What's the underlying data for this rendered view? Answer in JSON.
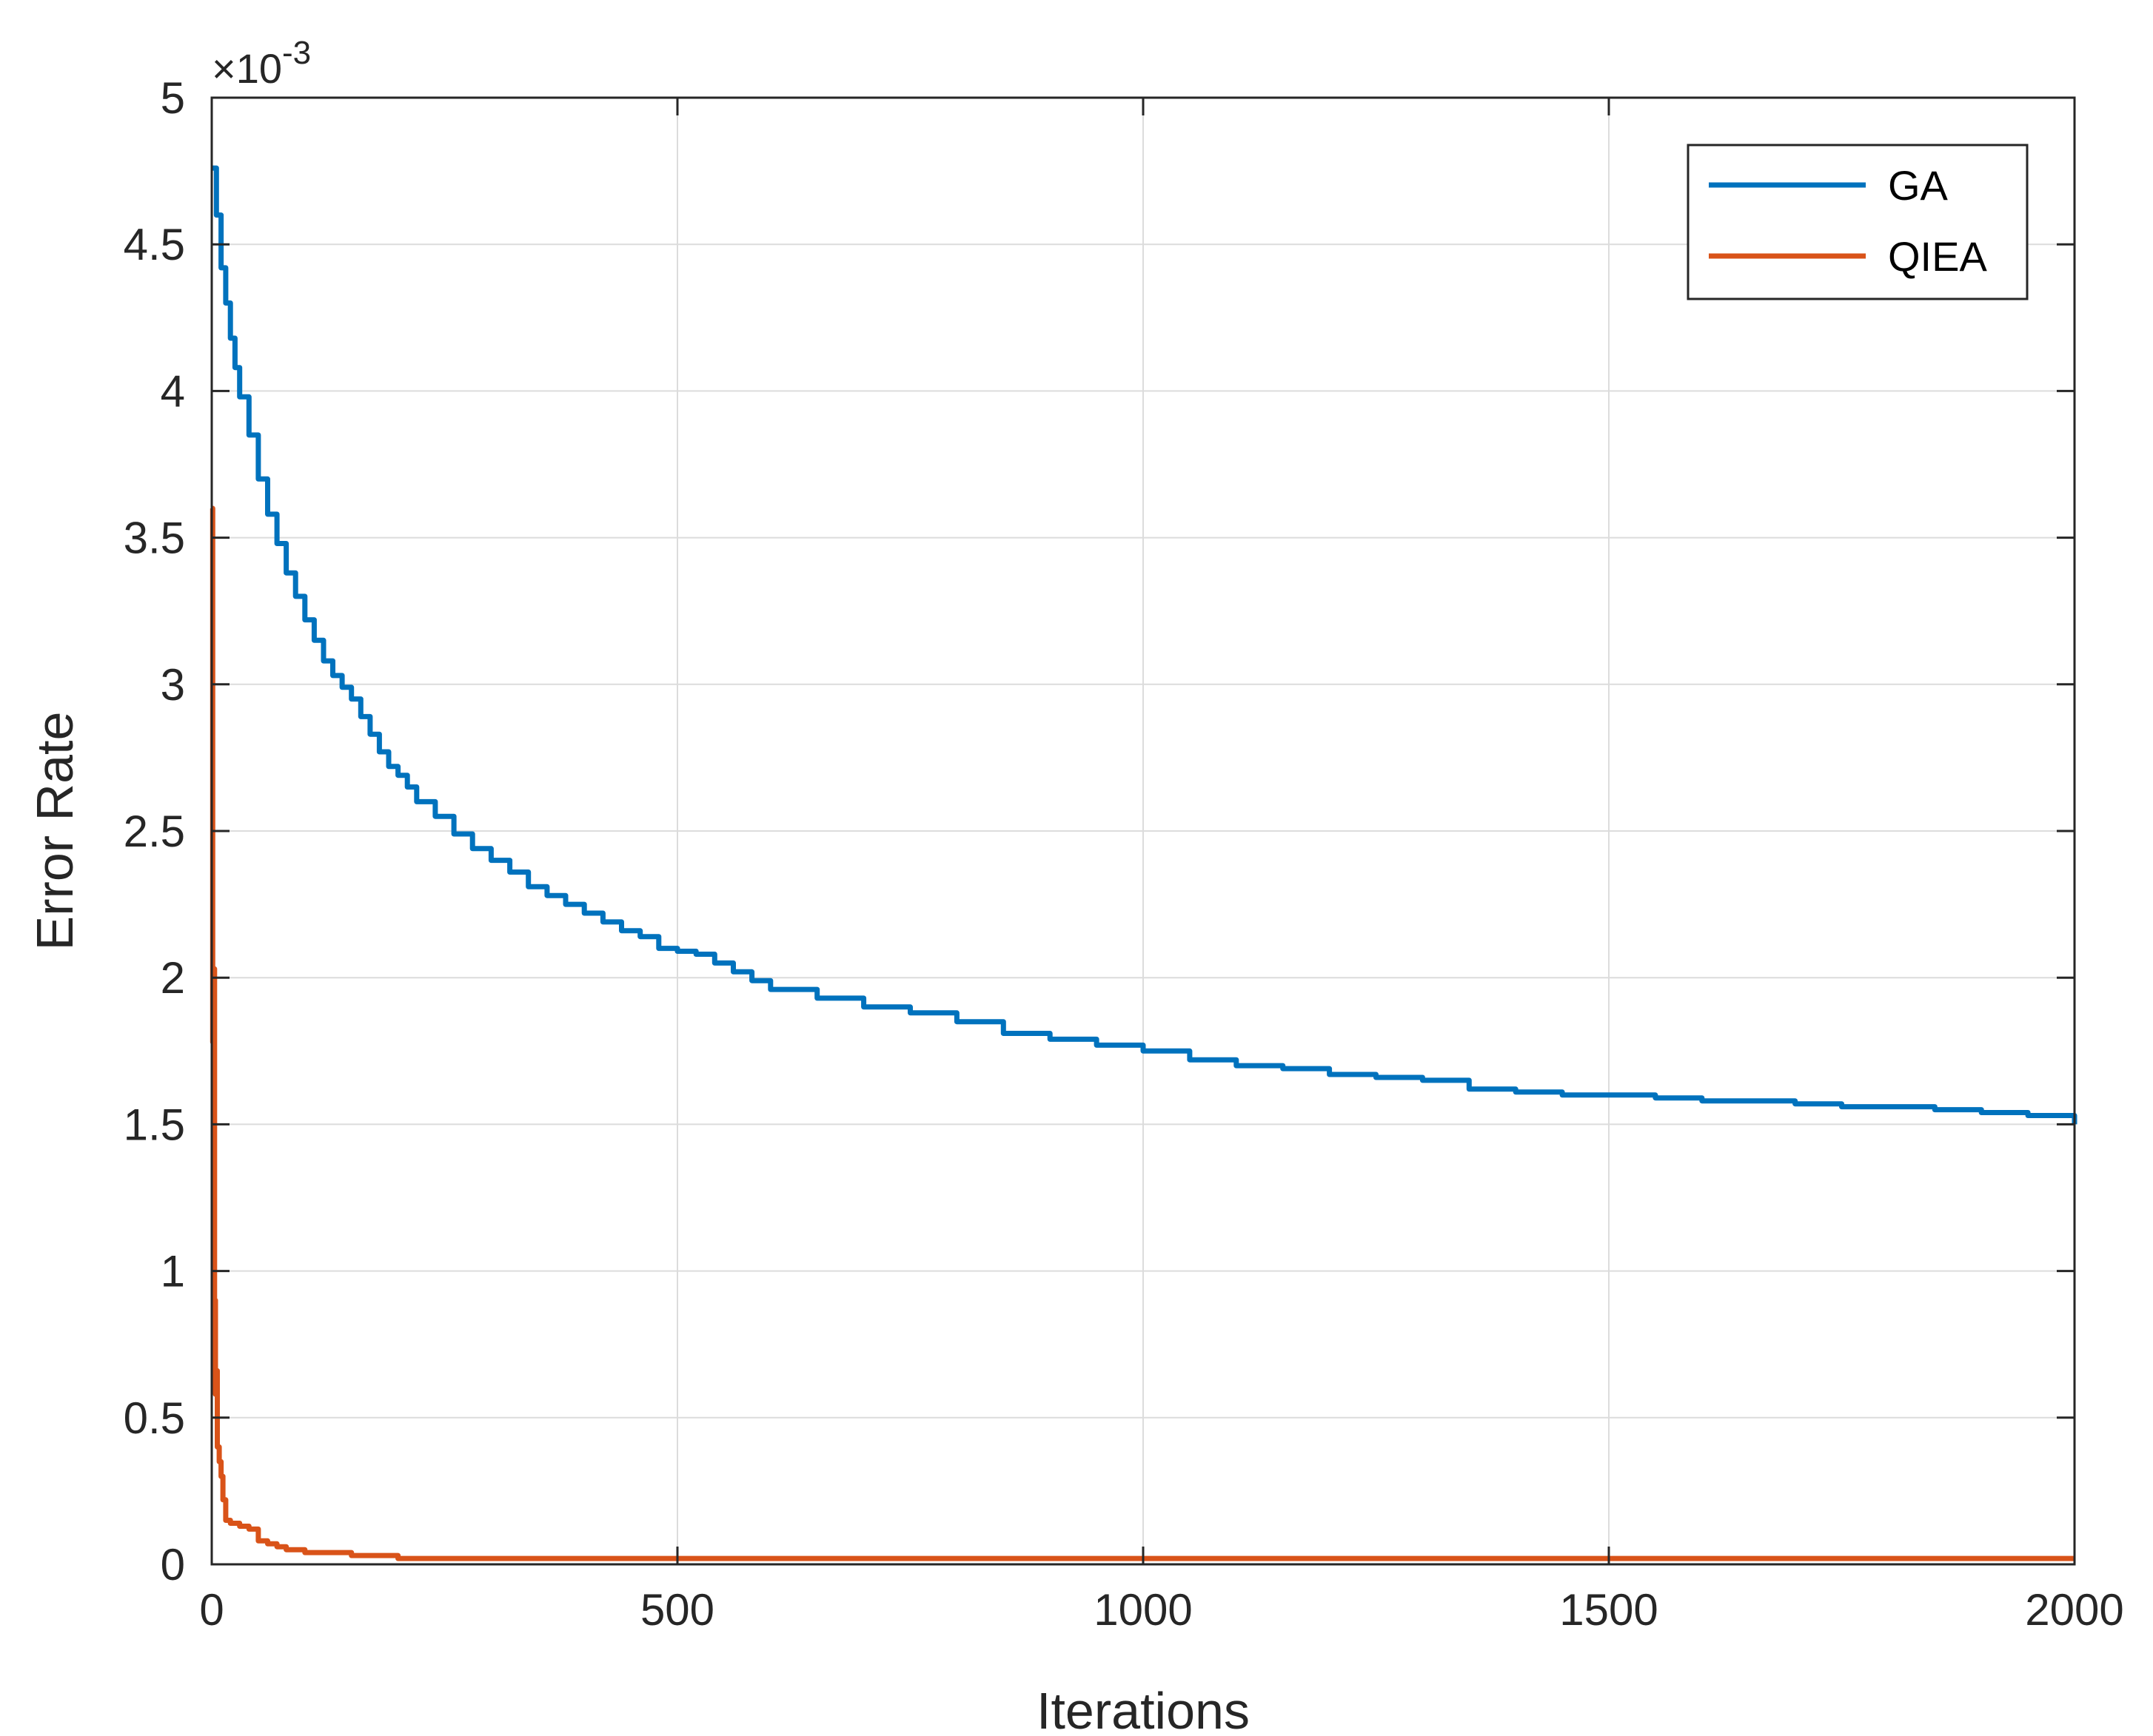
{
  "chart_data": {
    "type": "line",
    "xlabel": "Iterations",
    "ylabel": "Error Rate",
    "y_multiplier_label": "×10",
    "y_multiplier_exponent": "-3",
    "xlim": [
      0,
      2000
    ],
    "ylim": [
      0,
      5
    ],
    "xticks": [
      "0",
      "500",
      "1000",
      "1500",
      "2000"
    ],
    "xtick_values": [
      0,
      500,
      1000,
      1500,
      2000
    ],
    "yticks": [
      "0",
      "0.5",
      "1",
      "1.5",
      "2",
      "2.5",
      "3",
      "3.5",
      "4",
      "4.5",
      "5"
    ],
    "ytick_values": [
      0,
      0.5,
      1,
      1.5,
      2,
      2.5,
      3,
      3.5,
      4,
      4.5,
      5
    ],
    "grid": true,
    "legend_position": "top-right",
    "series": [
      {
        "name": "GA",
        "color": "#0072BD",
        "x": [
          0,
          5,
          10,
          15,
          20,
          25,
          30,
          40,
          50,
          60,
          70,
          80,
          90,
          100,
          110,
          120,
          130,
          140,
          150,
          160,
          170,
          180,
          190,
          200,
          210,
          220,
          240,
          260,
          280,
          300,
          320,
          340,
          360,
          380,
          400,
          420,
          440,
          460,
          480,
          500,
          520,
          540,
          560,
          580,
          600,
          650,
          700,
          750,
          800,
          850,
          900,
          950,
          1000,
          1050,
          1100,
          1150,
          1200,
          1250,
          1300,
          1350,
          1400,
          1450,
          1500,
          1550,
          1600,
          1650,
          1700,
          1750,
          1800,
          1850,
          1900,
          1950,
          2000
        ],
        "y": [
          4.76,
          4.6,
          4.42,
          4.3,
          4.18,
          4.08,
          3.98,
          3.85,
          3.7,
          3.58,
          3.48,
          3.38,
          3.3,
          3.22,
          3.15,
          3.08,
          3.03,
          2.99,
          2.95,
          2.89,
          2.83,
          2.77,
          2.72,
          2.69,
          2.65,
          2.6,
          2.55,
          2.49,
          2.44,
          2.4,
          2.36,
          2.31,
          2.28,
          2.25,
          2.22,
          2.19,
          2.16,
          2.14,
          2.1,
          2.09,
          2.08,
          2.05,
          2.02,
          1.99,
          1.96,
          1.93,
          1.9,
          1.88,
          1.85,
          1.81,
          1.79,
          1.77,
          1.75,
          1.72,
          1.7,
          1.69,
          1.67,
          1.66,
          1.65,
          1.62,
          1.61,
          1.6,
          1.6,
          1.59,
          1.58,
          1.58,
          1.57,
          1.56,
          1.56,
          1.55,
          1.54,
          1.53,
          1.5
        ]
      },
      {
        "name": "QIEA",
        "color": "#D95319",
        "x": [
          0,
          1,
          2,
          3,
          4,
          5,
          6,
          8,
          10,
          12,
          15,
          20,
          30,
          40,
          50,
          60,
          70,
          80,
          90,
          100,
          120,
          150,
          200,
          300,
          500,
          1000,
          1500,
          2000
        ],
        "y": [
          3.6,
          1.78,
          2.03,
          0.9,
          0.58,
          0.66,
          0.4,
          0.35,
          0.3,
          0.22,
          0.15,
          0.14,
          0.13,
          0.12,
          0.08,
          0.07,
          0.06,
          0.05,
          0.05,
          0.04,
          0.04,
          0.03,
          0.02,
          0.02,
          0.02,
          0.02,
          0.02,
          0.02
        ]
      }
    ]
  }
}
